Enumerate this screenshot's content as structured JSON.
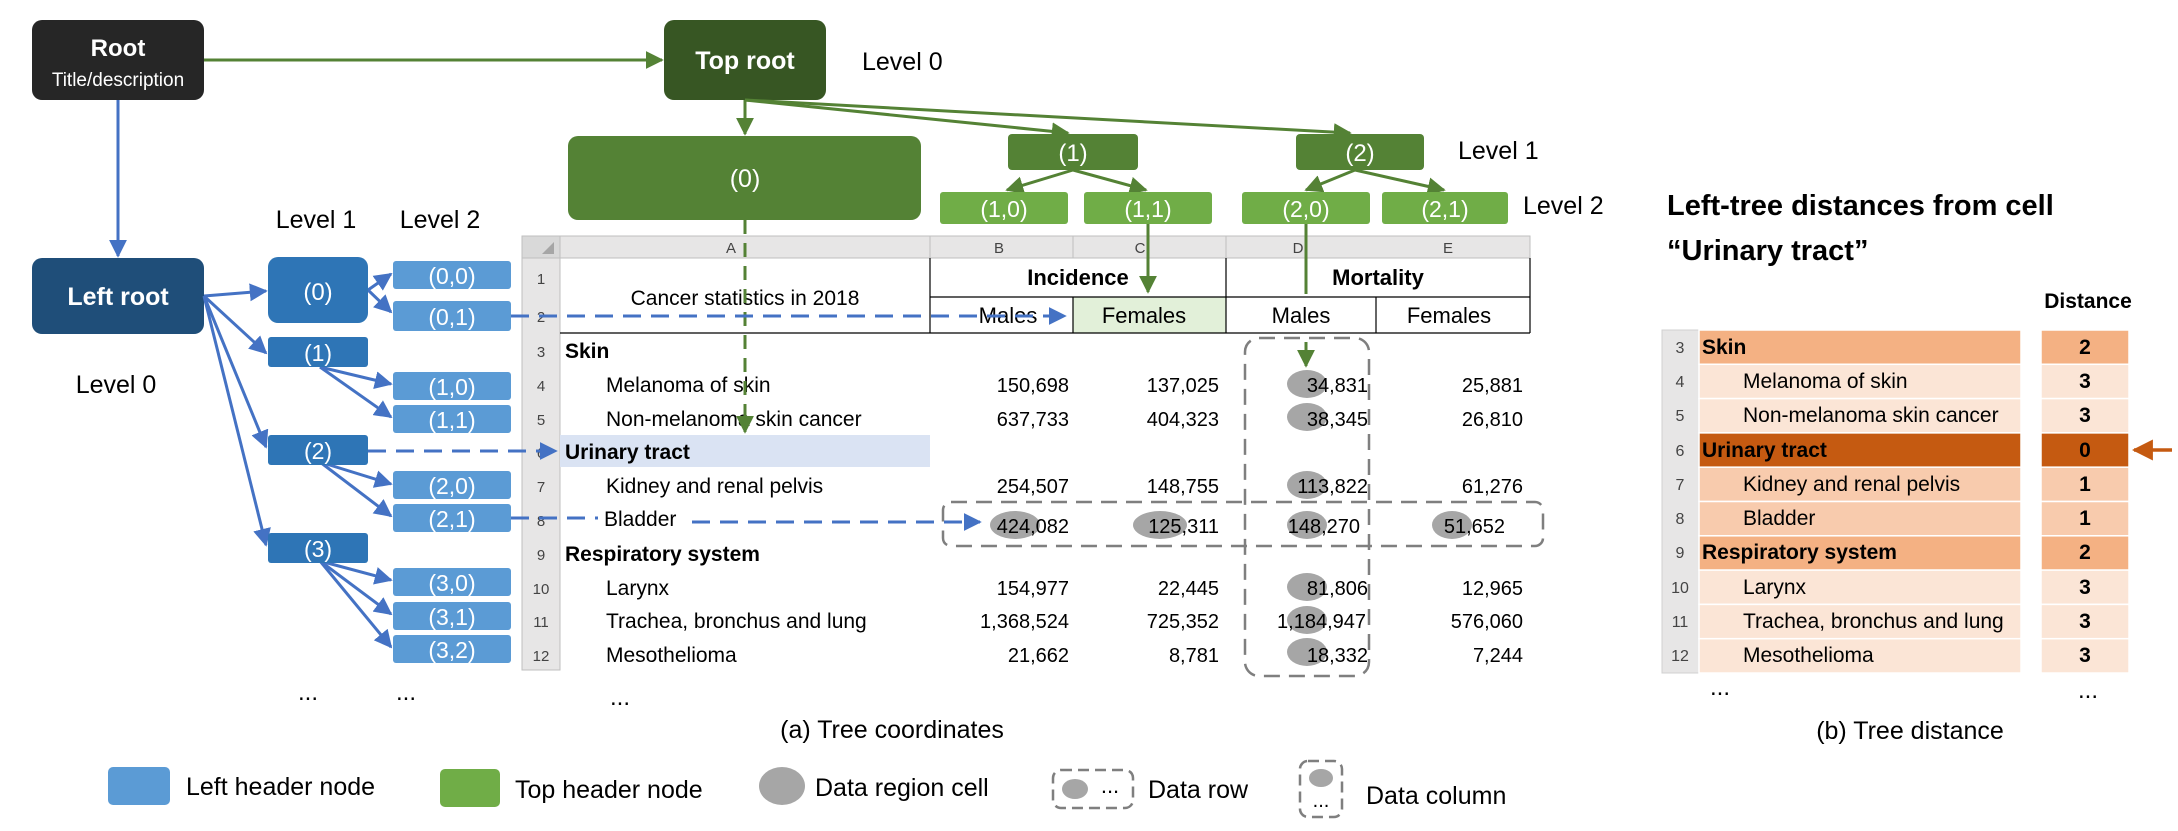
{
  "roots": {
    "root_title": "Root",
    "root_subtitle": "Title/description",
    "top_root": "Top root",
    "left_root": "Left root",
    "level0_top": "Level 0",
    "level0_left": "Level 0"
  },
  "top_tree": {
    "level1_label": "Level 1",
    "level2_label": "Level 2",
    "node_0": "(0)",
    "node_1": "(1)",
    "node_2": "(2)",
    "node_1_0": "(1,0)",
    "node_1_1": "(1,1)",
    "node_2_0": "(2,0)",
    "node_2_1": "(2,1)"
  },
  "left_tree": {
    "level1_label": "Level 1",
    "level2_label": "Level 2",
    "nodes_level1": [
      "(0)",
      "(1)",
      "(2)",
      "(3)"
    ],
    "nodes_level2": [
      "(0,0)",
      "(0,1)",
      "(1,0)",
      "(1,1)",
      "(2,0)",
      "(2,1)",
      "(3,0)",
      "(3,1)",
      "(3,2)"
    ],
    "ellipsis_1": "...",
    "ellipsis_2": "..."
  },
  "sheet": {
    "col_headers": [
      "A",
      "B",
      "C",
      "D",
      "E"
    ],
    "row_numbers": [
      "1",
      "2",
      "3",
      "4",
      "5",
      "6",
      "7",
      "8",
      "9",
      "10",
      "11",
      "12"
    ],
    "title": "Cancer statistics in 2018",
    "incidence": "Incidence",
    "mortality": "Mortality",
    "males_1": "Males",
    "females_1": "Females",
    "males_2": "Males",
    "females_2": "Females",
    "rows": [
      {
        "label": "Skin",
        "b": "",
        "c": "",
        "d": "",
        "e": ""
      },
      {
        "label": "Melanoma of skin",
        "b": "150,698",
        "c": "137,025",
        "d": "34,831",
        "e": "25,881"
      },
      {
        "label": "Non-melanoma skin cancer",
        "b": "637,733",
        "c": "404,323",
        "d": "38,345",
        "e": "26,810"
      },
      {
        "label": "Urinary tract",
        "b": "",
        "c": "",
        "d": "",
        "e": ""
      },
      {
        "label": "Kidney and renal pelvis",
        "b": "254,507",
        "c": "148,755",
        "d": "113,822",
        "e": "61,276"
      },
      {
        "label": "Bladder",
        "b": "424,082",
        "c": "125,311",
        "d": "148,270",
        "e": "51,652"
      },
      {
        "label": "Respiratory system",
        "b": "",
        "c": "",
        "d": "",
        "e": ""
      },
      {
        "label": "Larynx",
        "b": "154,977",
        "c": "22,445",
        "d": "81,806",
        "e": "12,965"
      },
      {
        "label": "Trachea, bronchus and lung",
        "b": "1,368,524",
        "c": "725,352",
        "d": "1,184,947",
        "e": "576,060"
      },
      {
        "label": "Mesothelioma",
        "b": "21,662",
        "c": "8,781",
        "d": "18,332",
        "e": "7,244"
      }
    ],
    "ellipsis": "...",
    "caption": "(a) Tree coordinates"
  },
  "distance_panel": {
    "title_line1": "Left-tree distances from cell",
    "title_line2": "“Urinary tract”",
    "distance_header": "Distance",
    "rows": [
      {
        "num": "3",
        "label": "Skin",
        "dist": "2"
      },
      {
        "num": "4",
        "label": "Melanoma of skin",
        "dist": "3"
      },
      {
        "num": "5",
        "label": "Non-melanoma skin cancer",
        "dist": "3"
      },
      {
        "num": "6",
        "label": "Urinary tract",
        "dist": "0"
      },
      {
        "num": "7",
        "label": "Kidney and renal pelvis",
        "dist": "1"
      },
      {
        "num": "8",
        "label": "Bladder",
        "dist": "1"
      },
      {
        "num": "9",
        "label": "Respiratory system",
        "dist": "2"
      },
      {
        "num": "10",
        "label": "Larynx",
        "dist": "3"
      },
      {
        "num": "11",
        "label": "Trachea, bronchus and lung",
        "dist": "3"
      },
      {
        "num": "12",
        "label": "Mesothelioma",
        "dist": "3"
      }
    ],
    "ellipsis_label": "...",
    "ellipsis_dist": "...",
    "caption": "(b) Tree distance"
  },
  "legend": {
    "left_header": "Left header node",
    "top_header": "Top header node",
    "data_cell": "Data region cell",
    "data_row": "Data row",
    "data_row_dots": "...",
    "data_column": "Data column",
    "data_column_dots": "..."
  },
  "colors": {
    "blue_dark": "#1F4E79",
    "blue_mid": "#2E75B6",
    "blue_light": "#5B9BD5",
    "green_dark": "#375623",
    "green_mid": "#548235",
    "green_light": "#70AD47",
    "root_black": "#262626",
    "highlight_blue": "#DAE3F3",
    "highlight_green": "#E2F0D9",
    "orange_dark": "#C55A11",
    "orange_mid": "#F4B183",
    "orange_light": "#F8CBAD",
    "orange_pale": "#FBE5D6",
    "oval_gray": "#A6A6A6"
  }
}
